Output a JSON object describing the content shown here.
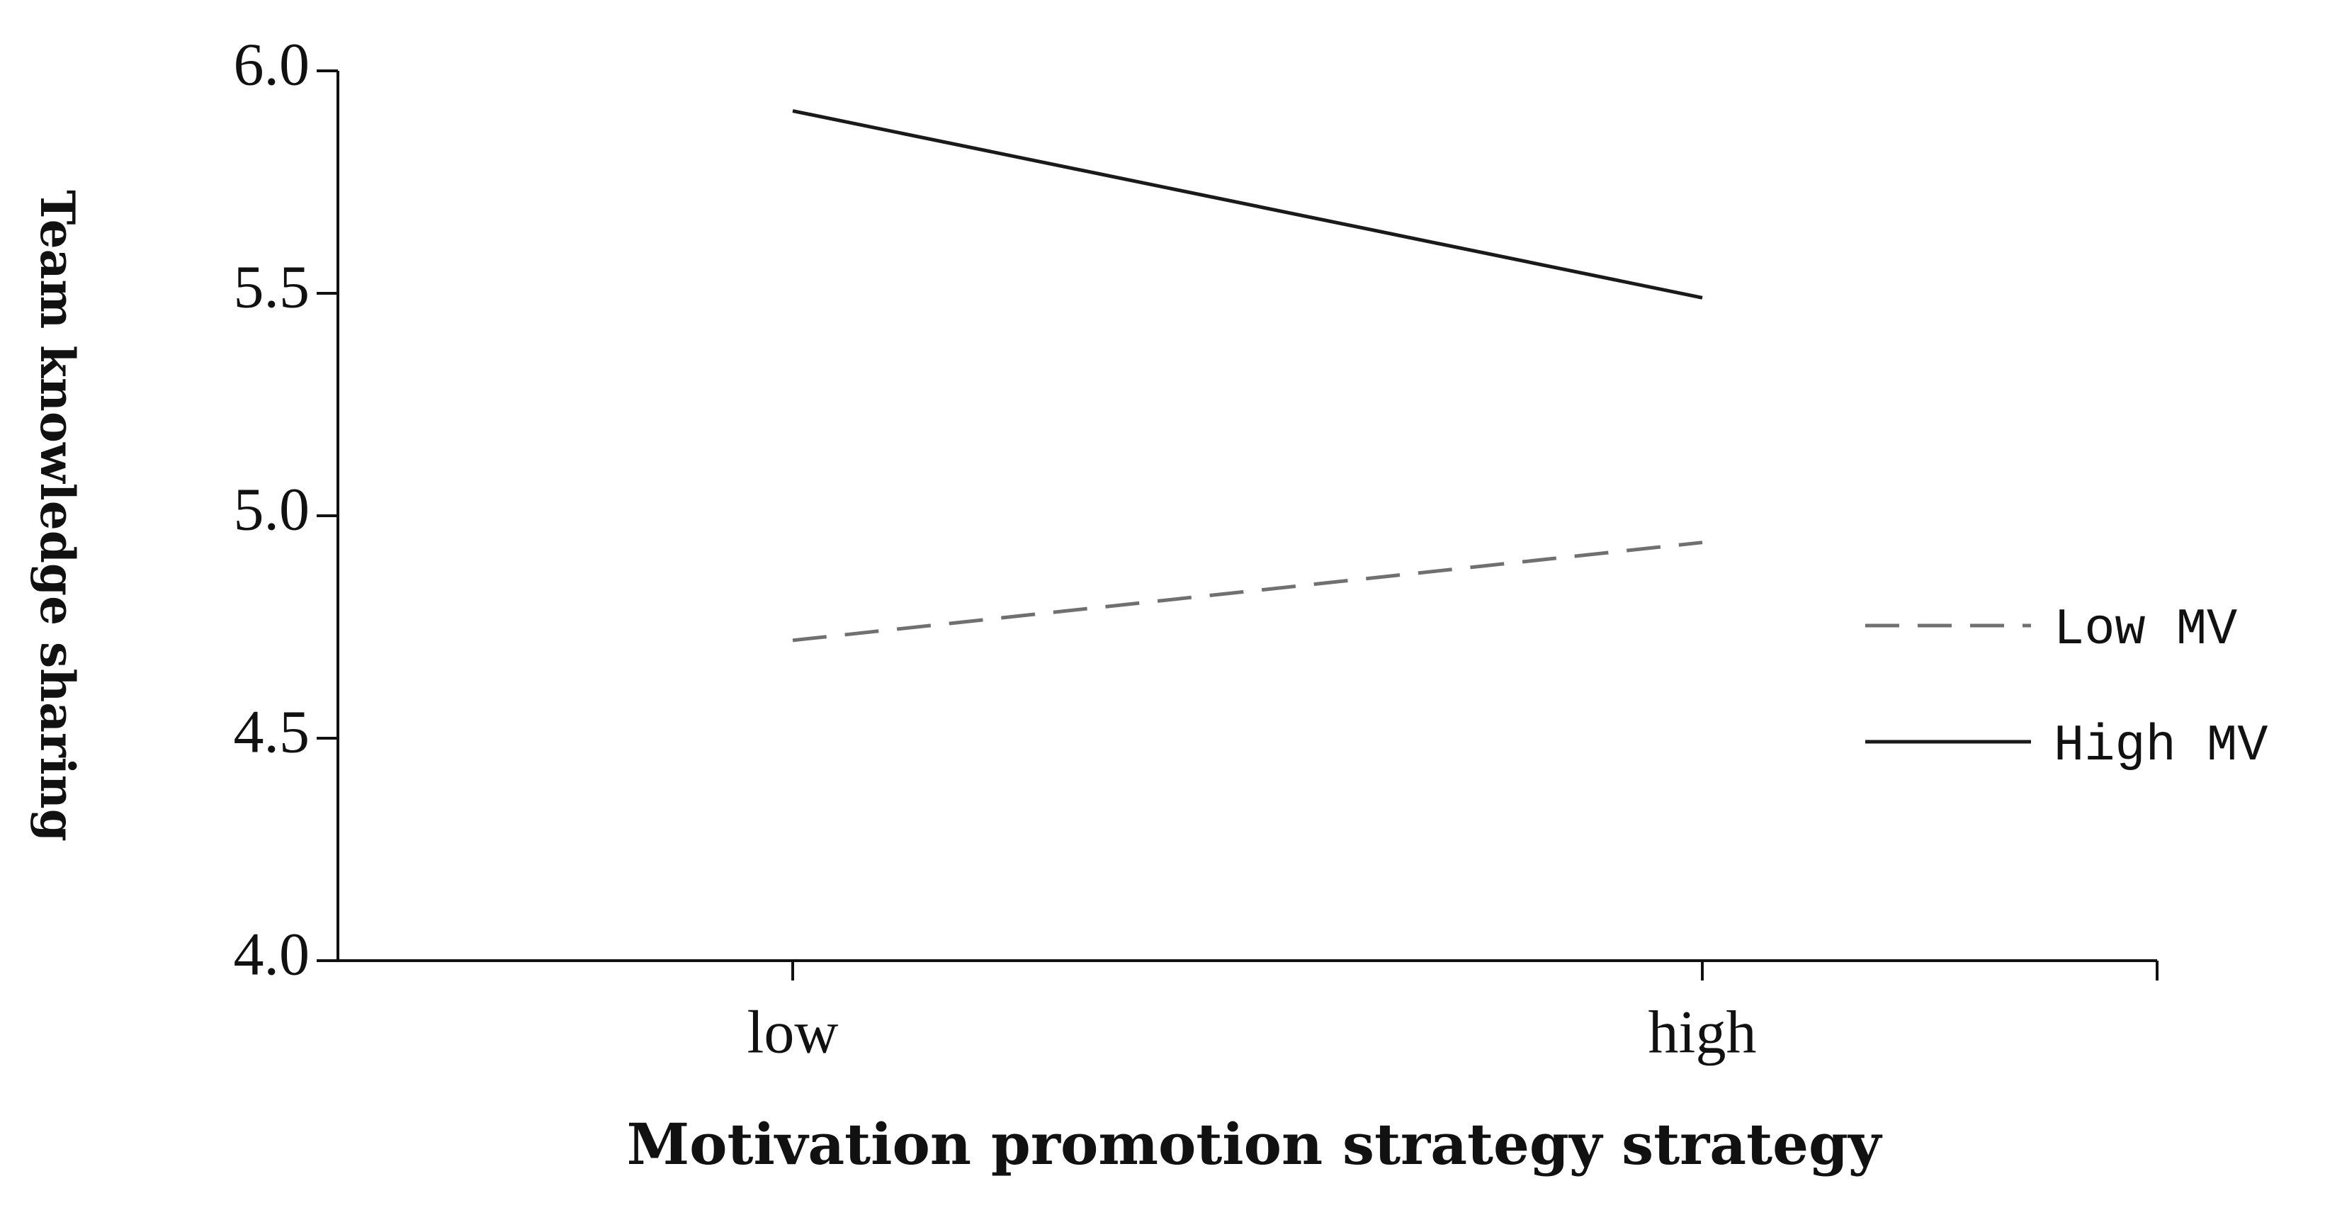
{
  "chart_data": {
    "type": "line",
    "xlabel": "Motivation promotion strategy strategy",
    "ylabel": "Team knowledge sharing",
    "categories": [
      "low",
      "high"
    ],
    "series": [
      {
        "name": "Low MV",
        "color": "#707070",
        "linestyle": "dashed",
        "values": [
          4.72,
          4.94
        ]
      },
      {
        "name": "High MV",
        "color": "#1a1a1a",
        "linestyle": "solid",
        "values": [
          5.91,
          5.49
        ]
      }
    ],
    "ylim": [
      4.0,
      6.0
    ],
    "yticks": [
      {
        "value": 4.0,
        "label": "4.0"
      },
      {
        "value": 4.5,
        "label": "4.5"
      },
      {
        "value": 5.0,
        "label": "5.0"
      },
      {
        "value": 5.5,
        "label": "5.5"
      },
      {
        "value": 6.0,
        "label": "6.0"
      }
    ],
    "grid": false,
    "legend": "right"
  }
}
